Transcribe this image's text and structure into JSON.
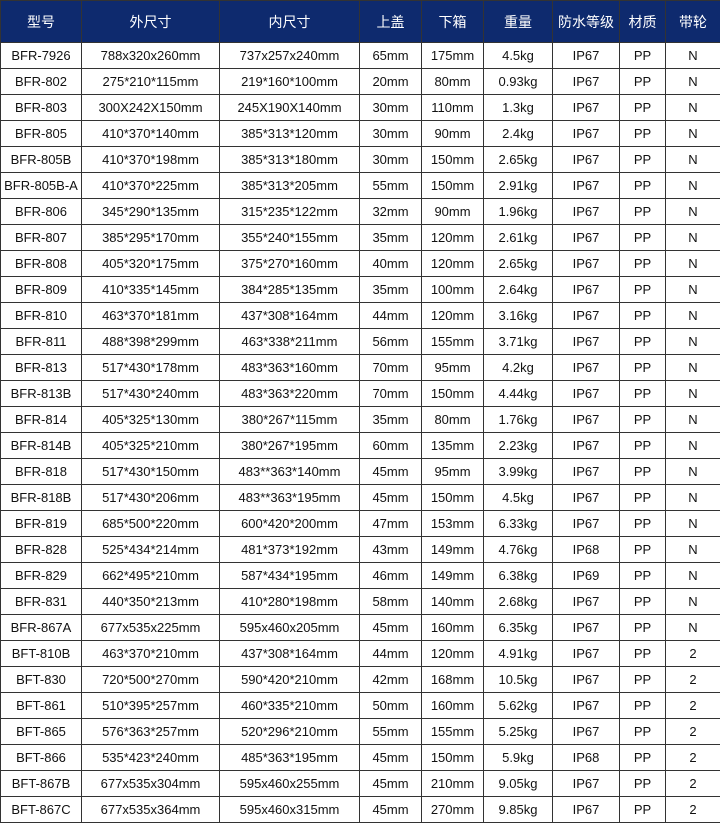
{
  "header_bg": "#0e2a6e",
  "headers": [
    "型号",
    "外尺寸",
    "内尺寸",
    "上盖",
    "下箱",
    "重量",
    "防水等级",
    "材质",
    "带轮"
  ],
  "rows": [
    [
      "BFR-7926",
      "788x320x260mm",
      "737x257x240mm",
      "65mm",
      "175mm",
      "4.5kg",
      "IP67",
      "PP",
      "N"
    ],
    [
      "BFR-802",
      "275*210*115mm",
      "219*160*100mm",
      "20mm",
      "80mm",
      "0.93kg",
      "IP67",
      "PP",
      "N"
    ],
    [
      "BFR-803",
      "300X242X150mm",
      "245X190X140mm",
      "30mm",
      "110mm",
      "1.3kg",
      "IP67",
      "PP",
      "N"
    ],
    [
      "BFR-805",
      "410*370*140mm",
      "385*313*120mm",
      "30mm",
      "90mm",
      "2.4kg",
      "IP67",
      "PP",
      "N"
    ],
    [
      "BFR-805B",
      "410*370*198mm",
      "385*313*180mm",
      "30mm",
      "150mm",
      "2.65kg",
      "IP67",
      "PP",
      "N"
    ],
    [
      "BFR-805B-A",
      "410*370*225mm",
      "385*313*205mm",
      "55mm",
      "150mm",
      "2.91kg",
      "IP67",
      "PP",
      "N"
    ],
    [
      "BFR-806",
      "345*290*135mm",
      "315*235*122mm",
      "32mm",
      "90mm",
      "1.96kg",
      "IP67",
      "PP",
      "N"
    ],
    [
      "BFR-807",
      "385*295*170mm",
      "355*240*155mm",
      "35mm",
      "120mm",
      "2.61kg",
      "IP67",
      "PP",
      "N"
    ],
    [
      "BFR-808",
      "405*320*175mm",
      "375*270*160mm",
      "40mm",
      "120mm",
      "2.65kg",
      "IP67",
      "PP",
      "N"
    ],
    [
      "BFR-809",
      "410*335*145mm",
      "384*285*135mm",
      "35mm",
      "100mm",
      "2.64kg",
      "IP67",
      "PP",
      "N"
    ],
    [
      "BFR-810",
      "463*370*181mm",
      "437*308*164mm",
      "44mm",
      "120mm",
      "3.16kg",
      "IP67",
      "PP",
      "N"
    ],
    [
      "BFR-811",
      "488*398*299mm",
      "463*338*211mm",
      "56mm",
      "155mm",
      "3.71kg",
      "IP67",
      "PP",
      "N"
    ],
    [
      "BFR-813",
      "517*430*178mm",
      "483*363*160mm",
      "70mm",
      "95mm",
      "4.2kg",
      "IP67",
      "PP",
      "N"
    ],
    [
      "BFR-813B",
      "517*430*240mm",
      "483*363*220mm",
      "70mm",
      "150mm",
      "4.44kg",
      "IP67",
      "PP",
      "N"
    ],
    [
      "BFR-814",
      "405*325*130mm",
      "380*267*115mm",
      "35mm",
      "80mm",
      "1.76kg",
      "IP67",
      "PP",
      "N"
    ],
    [
      "BFR-814B",
      "405*325*210mm",
      "380*267*195mm",
      "60mm",
      "135mm",
      "2.23kg",
      "IP67",
      "PP",
      "N"
    ],
    [
      "BFR-818",
      "517*430*150mm",
      "483**363*140mm",
      "45mm",
      "95mm",
      "3.99kg",
      "IP67",
      "PP",
      "N"
    ],
    [
      "BFR-818B",
      "517*430*206mm",
      "483**363*195mm",
      "45mm",
      "150mm",
      "4.5kg",
      "IP67",
      "PP",
      "N"
    ],
    [
      "BFR-819",
      "685*500*220mm",
      "600*420*200mm",
      "47mm",
      "153mm",
      "6.33kg",
      "IP67",
      "PP",
      "N"
    ],
    [
      "BFR-828",
      "525*434*214mm",
      "481*373*192mm",
      "43mm",
      "149mm",
      "4.76kg",
      "IP68",
      "PP",
      "N"
    ],
    [
      "BFR-829",
      "662*495*210mm",
      "587*434*195mm",
      "46mm",
      "149mm",
      "6.38kg",
      "IP69",
      "PP",
      "N"
    ],
    [
      "BFR-831",
      "440*350*213mm",
      "410*280*198mm",
      "58mm",
      "140mm",
      "2.68kg",
      "IP67",
      "PP",
      "N"
    ],
    [
      "BFR-867A",
      "677x535x225mm",
      "595x460x205mm",
      "45mm",
      "160mm",
      "6.35kg",
      "IP67",
      "PP",
      "N"
    ],
    [
      "BFT-810B",
      "463*370*210mm",
      "437*308*164mm",
      "44mm",
      "120mm",
      "4.91kg",
      "IP67",
      "PP",
      "2"
    ],
    [
      "BFT-830",
      "720*500*270mm",
      "590*420*210mm",
      "42mm",
      "168mm",
      "10.5kg",
      "IP67",
      "PP",
      "2"
    ],
    [
      "BFT-861",
      "510*395*257mm",
      "460*335*210mm",
      "50mm",
      "160mm",
      "5.62kg",
      "IP67",
      "PP",
      "2"
    ],
    [
      "BFT-865",
      "576*363*257mm",
      "520*296*210mm",
      "55mm",
      "155mm",
      "5.25kg",
      "IP67",
      "PP",
      "2"
    ],
    [
      "BFT-866",
      "535*423*240mm",
      "485*363*195mm",
      "45mm",
      "150mm",
      "5.9kg",
      "IP68",
      "PP",
      "2"
    ],
    [
      "BFT-867B",
      "677x535x304mm",
      "595x460x255mm",
      "45mm",
      "210mm",
      "9.05kg",
      "IP67",
      "PP",
      "2"
    ],
    [
      "BFT-867C",
      "677x535x364mm",
      "595x460x315mm",
      "45mm",
      "270mm",
      "9.85kg",
      "IP67",
      "PP",
      "2"
    ]
  ]
}
